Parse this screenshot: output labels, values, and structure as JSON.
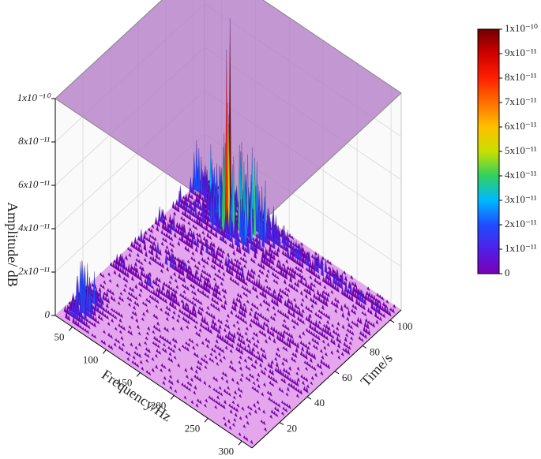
{
  "chart_data": {
    "type": "surface3d",
    "xlabel": "Frequency/Hz",
    "ylabel": "Time/s",
    "zlabel": "Amplitude/ dB",
    "xlim": [
      25,
      315
    ],
    "xticks": [
      50,
      100,
      150,
      200,
      250,
      300
    ],
    "ylim": [
      0,
      108
    ],
    "yticks": [
      20,
      40,
      60,
      80,
      100
    ],
    "zlim": [
      0,
      1e-10
    ],
    "zticks": [
      0,
      {
        "value": 2e-11,
        "label": "2x10⁻¹¹"
      },
      {
        "value": 4e-11,
        "label": "4x10⁻¹¹"
      },
      {
        "value": 6e-11,
        "label": "6x10⁻¹¹"
      },
      {
        "value": 8e-11,
        "label": "8x10⁻¹¹"
      },
      {
        "value": 1e-10,
        "label": "1x10⁻¹⁰"
      }
    ],
    "grid": true,
    "colorbar": {
      "lim": [
        0,
        1e-10
      ],
      "ticks": [
        0,
        {
          "value": 1e-11,
          "label": "1x10⁻¹¹"
        },
        {
          "value": 2e-11,
          "label": "2x10⁻¹¹"
        },
        {
          "value": 3e-11,
          "label": "3x10⁻¹¹"
        },
        {
          "value": 4e-11,
          "label": "4x10⁻¹¹"
        },
        {
          "value": 5e-11,
          "label": "5x10⁻¹¹"
        },
        {
          "value": 6e-11,
          "label": "6x10⁻¹¹"
        },
        {
          "value": 7e-11,
          "label": "7x10⁻¹¹"
        },
        {
          "value": 8e-11,
          "label": "8x10⁻¹¹"
        },
        {
          "value": 9e-11,
          "label": "9x10⁻¹¹"
        },
        {
          "value": 1e-10,
          "label": "1x10⁻¹⁰"
        }
      ],
      "colors": [
        "#7a00b4",
        "#5020e8",
        "#1e4cff",
        "#00b8ff",
        "#30d060",
        "#c8e000",
        "#ffc000",
        "#ff7000",
        "#ff2000",
        "#d00000",
        "#700000"
      ]
    }
  }
}
